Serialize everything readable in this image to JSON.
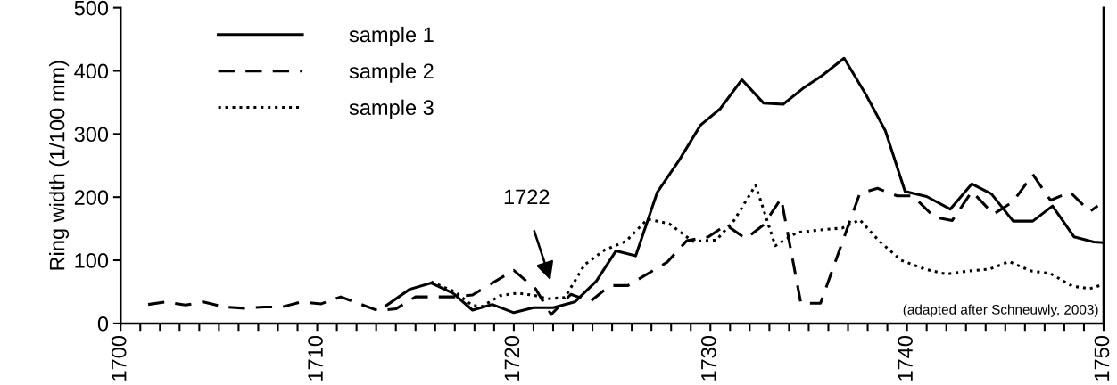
{
  "chart_data": {
    "type": "line",
    "ylabel": "Ring width (1/100 mm)",
    "xlim": [
      1700,
      1750
    ],
    "ylim": [
      0,
      500
    ],
    "xticks": [
      1700,
      1710,
      1720,
      1730,
      1740,
      1750
    ],
    "yticks": [
      0,
      100,
      200,
      300,
      400,
      500
    ],
    "grid": false,
    "legend": "top left",
    "marker": "none",
    "annotations": [
      "1722",
      "(adapted after Schneuwly, 2003)"
    ],
    "series": [
      {
        "name": "sample 1",
        "color": "#000000",
        "line_style": "solid",
        "x": [
          1713.5,
          1714.7,
          1715.8,
          1716.9,
          1717.9,
          1718.9,
          1720,
          1721,
          1722,
          1723.1,
          1724.2,
          1725.2,
          1726.2,
          1727.3,
          1728.4,
          1729.5,
          1730.5,
          1731.6,
          1732.7,
          1733.7,
          1734.7,
          1735.7,
          1736.8,
          1737.9,
          1738.9,
          1739.9,
          1741,
          1742.2,
          1743.3,
          1744.3,
          1745.4,
          1746.4,
          1747.4,
          1748.5,
          1749.5,
          1750
        ],
        "values": [
          28,
          54,
          64,
          48,
          21,
          30,
          17,
          25,
          25,
          34,
          67,
          115,
          107,
          208,
          258,
          314,
          340,
          386,
          349,
          347,
          372,
          393,
          420,
          363,
          305,
          209,
          201,
          181,
          221,
          205,
          162,
          162,
          186,
          137,
          129,
          128
        ]
      },
      {
        "name": "sample 2",
        "color": "#000000",
        "line_style": "dashed",
        "x": [
          1701.4,
          1702.3,
          1703.3,
          1704.2,
          1705.3,
          1706.3,
          1707.3,
          1708.2,
          1709.2,
          1710.2,
          1711.2,
          1713.1,
          1714,
          1715,
          1716,
          1717,
          1717.9,
          1718.8,
          1720,
          1721.1,
          1721.9,
          1722.9,
          1723.9,
          1724.9,
          1725.8,
          1727.8,
          1728.8,
          1729.9,
          1730.8,
          1731.8,
          1732.7,
          1733.6,
          1734.6,
          1735.6,
          1737.6,
          1738.5,
          1739.5,
          1740.3,
          1741.4,
          1742.3,
          1743.3,
          1744.4,
          1745.4,
          1746.4,
          1747.3,
          1748.3,
          1749.3,
          1749.7
        ],
        "values": [
          30,
          34,
          29,
          34,
          26,
          24,
          26,
          26,
          34,
          31,
          42,
          20,
          23,
          42,
          42,
          42,
          45,
          62,
          84,
          55,
          14,
          46,
          35,
          60,
          60,
          97,
          131,
          137,
          156,
          134,
          156,
          198,
          32,
          32,
          206,
          214,
          202,
          202,
          168,
          163,
          209,
          173,
          193,
          236,
          195,
          208,
          177,
          186
        ]
      },
      {
        "name": "sample 3",
        "color": "#000000",
        "line_style": "dotted",
        "x": [
          1715.8,
          1717,
          1717.9,
          1718.4,
          1719.3,
          1720.2,
          1721.1,
          1721.7,
          1722.6,
          1723.6,
          1724.6,
          1725.7,
          1726.8,
          1727.9,
          1729.1,
          1730.3,
          1731.2,
          1732.3,
          1733.3,
          1734.4,
          1735.6,
          1736.7,
          1737.6,
          1738.6,
          1739.7,
          1740.9,
          1742,
          1743.1,
          1744.2,
          1745.2,
          1746.3,
          1747.3,
          1748.4,
          1749.3,
          1750
        ],
        "values": [
          66,
          50,
          28,
          27,
          44,
          48,
          44,
          39,
          41,
          93,
          116,
          130,
          165,
          158,
          130,
          132,
          163,
          219,
          123,
          144,
          148,
          151,
          164,
          130,
          100,
          86,
          78,
          83,
          86,
          98,
          83,
          79,
          59,
          55,
          62
        ]
      }
    ]
  }
}
